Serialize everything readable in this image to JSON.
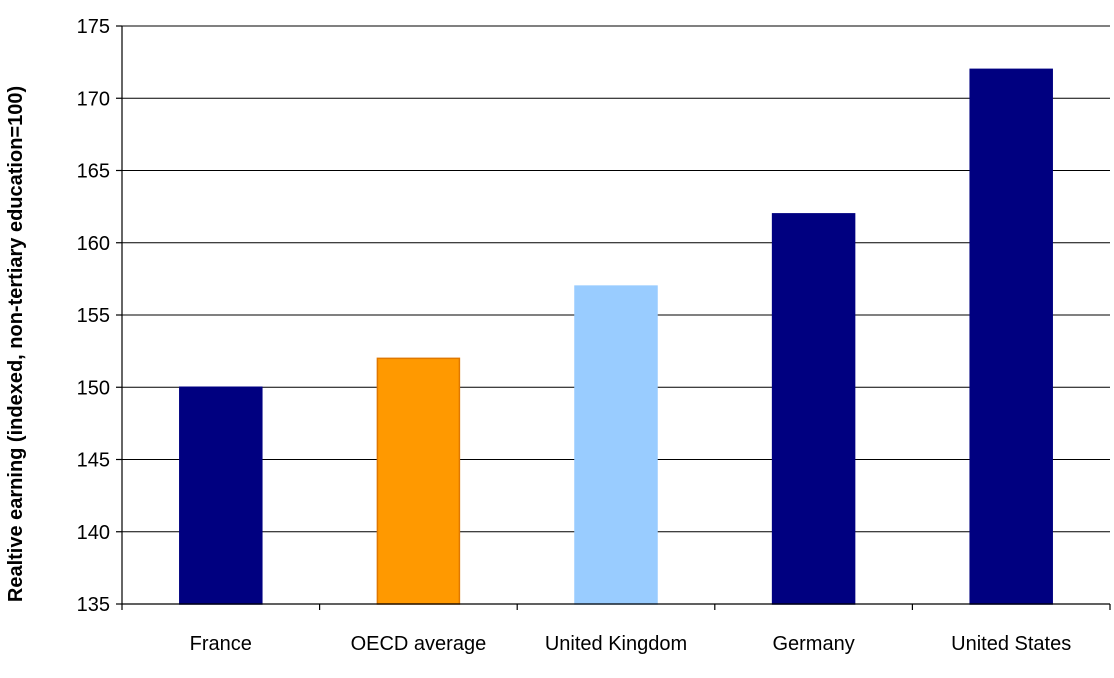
{
  "chart_data": {
    "type": "bar",
    "title": "",
    "xlabel": "",
    "ylabel": "Realtive earning (indexed, non-tertiary education=100)",
    "categories": [
      "France",
      "OECD average",
      "United Kingdom",
      "Germany",
      "United States"
    ],
    "values": [
      150,
      152,
      157,
      162,
      172
    ],
    "bar_colors": [
      "#000080",
      "#FF9900",
      "#99CCFF",
      "#000080",
      "#000080"
    ],
    "bar_edge_colors": [
      "#000080",
      "#E07800",
      "#99CCFF",
      "#000080",
      "#000080"
    ],
    "ylim": [
      135,
      175
    ],
    "yticks": [
      135,
      140,
      145,
      150,
      155,
      160,
      165,
      170,
      175
    ],
    "grid": true,
    "legend": "none"
  }
}
